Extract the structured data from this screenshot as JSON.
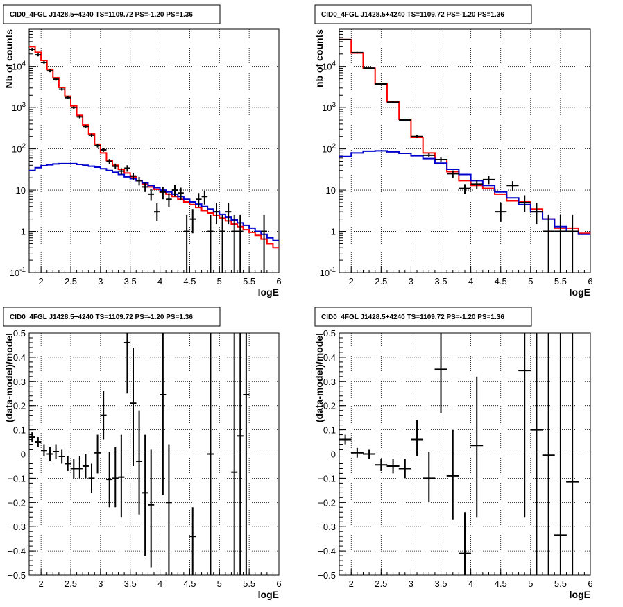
{
  "chart_data": [
    {
      "type": "step-histogram",
      "title": "CID0_4FGL J1428.5+4240 TS=1109.72 PS=-1.20 PS=1.36",
      "xlabel": "logE",
      "ylabel": "Nb of counts",
      "xlim": [
        1.8,
        6.0
      ],
      "ylim": [
        0.1,
        80000
      ],
      "log_y": true,
      "grid": true,
      "x_ticks": [
        "2",
        "2.5",
        "3",
        "3.5",
        "4",
        "4.5",
        "5",
        "5.5",
        "6"
      ],
      "y_ticks": [
        "10^-1",
        "1",
        "10",
        "10^2",
        "10^3",
        "10^4"
      ],
      "series": [
        {
          "color": "#ff0000",
          "style": "step",
          "edges": [
            1.8,
            1.9,
            2.0,
            2.1,
            2.2,
            2.3,
            2.4,
            2.5,
            2.6,
            2.7,
            2.8,
            2.9,
            3.0,
            3.1,
            3.2,
            3.3,
            3.4,
            3.5,
            3.6,
            3.7,
            3.8,
            3.9,
            4.0,
            4.1,
            4.2,
            4.3,
            4.4,
            4.5,
            4.6,
            4.7,
            4.8,
            4.9,
            5.0,
            5.1,
            5.2,
            5.3,
            5.4,
            5.5,
            5.6,
            5.7,
            5.8,
            5.9,
            6.0
          ],
          "values": [
            30000,
            22000,
            14000,
            8500,
            5300,
            3100,
            1900,
            1100,
            650,
            380,
            230,
            130,
            80,
            52,
            40,
            32,
            26,
            21,
            17,
            14,
            12,
            10.5,
            9,
            8,
            7,
            6,
            5.2,
            4.5,
            3.8,
            3.2,
            2.8,
            2.4,
            2.1,
            1.8,
            1.5,
            1.3,
            1.1,
            0.95,
            0.8,
            0.65,
            0.5,
            0.4
          ]
        },
        {
          "color": "#0000cc",
          "style": "step",
          "edges": [
            1.8,
            1.9,
            2.0,
            2.1,
            2.2,
            2.3,
            2.4,
            2.5,
            2.6,
            2.7,
            2.8,
            2.9,
            3.0,
            3.1,
            3.2,
            3.3,
            3.4,
            3.5,
            3.6,
            3.7,
            3.8,
            3.9,
            4.0,
            4.1,
            4.2,
            4.3,
            4.4,
            4.5,
            4.6,
            4.7,
            4.8,
            4.9,
            5.0,
            5.1,
            5.2,
            5.3,
            5.4,
            5.5,
            5.6,
            5.7,
            5.8,
            5.9,
            6.0
          ],
          "values": [
            30,
            35,
            39,
            41,
            43,
            44,
            44,
            44,
            42,
            40,
            38,
            36,
            33,
            30,
            27,
            24,
            21,
            19,
            17,
            15,
            13,
            11.5,
            10,
            9,
            8,
            7,
            6,
            5.2,
            4.6,
            4,
            3.5,
            3,
            2.6,
            2.2,
            1.9,
            1.6,
            1.4,
            1.2,
            1,
            0.85,
            0.7,
            0.6
          ]
        },
        {
          "color": "#000000",
          "style": "points",
          "points": [
            {
              "x": 1.85,
              "y": 26000,
              "ylo": 24000,
              "yhi": 28000
            },
            {
              "x": 1.95,
              "y": 19000,
              "ylo": 17500,
              "yhi": 20500
            },
            {
              "x": 2.05,
              "y": 12500,
              "ylo": 11500,
              "yhi": 13500
            },
            {
              "x": 2.15,
              "y": 7800,
              "ylo": 7200,
              "yhi": 8400
            },
            {
              "x": 2.25,
              "y": 4900,
              "ylo": 4500,
              "yhi": 5300
            },
            {
              "x": 2.35,
              "y": 2800,
              "ylo": 2600,
              "yhi": 3000
            },
            {
              "x": 2.45,
              "y": 1750,
              "ylo": 1620,
              "yhi": 1880
            },
            {
              "x": 2.55,
              "y": 1000,
              "ylo": 930,
              "yhi": 1070
            },
            {
              "x": 2.65,
              "y": 600,
              "ylo": 550,
              "yhi": 650
            },
            {
              "x": 2.75,
              "y": 350,
              "ylo": 320,
              "yhi": 380
            },
            {
              "x": 2.85,
              "y": 215,
              "ylo": 195,
              "yhi": 235
            },
            {
              "x": 2.95,
              "y": 120,
              "ylo": 108,
              "yhi": 132
            },
            {
              "x": 3.05,
              "y": 95,
              "ylo": 85,
              "yhi": 105
            },
            {
              "x": 3.15,
              "y": 50,
              "ylo": 43,
              "yhi": 57
            },
            {
              "x": 3.25,
              "y": 38,
              "ylo": 32,
              "yhi": 44
            },
            {
              "x": 3.35,
              "y": 29,
              "ylo": 24,
              "yhi": 34
            },
            {
              "x": 3.45,
              "y": 34,
              "ylo": 28,
              "yhi": 40
            },
            {
              "x": 3.55,
              "y": 22,
              "ylo": 17.5,
              "yhi": 26.5
            },
            {
              "x": 3.65,
              "y": 17,
              "ylo": 13,
              "yhi": 21
            },
            {
              "x": 3.75,
              "y": 12,
              "ylo": 9,
              "yhi": 15
            },
            {
              "x": 3.85,
              "y": 8,
              "ylo": 5.5,
              "yhi": 10.5
            },
            {
              "x": 3.95,
              "y": 3,
              "ylo": 1.8,
              "yhi": 5
            },
            {
              "x": 4.05,
              "y": 9,
              "ylo": 6,
              "yhi": 12
            },
            {
              "x": 4.15,
              "y": 6,
              "ylo": 3.8,
              "yhi": 8.5
            },
            {
              "x": 4.25,
              "y": 10,
              "ylo": 7,
              "yhi": 13.5
            },
            {
              "x": 4.35,
              "y": 8.5,
              "ylo": 5.8,
              "yhi": 11.5
            },
            {
              "x": 4.45,
              "y": 1,
              "ylo": 0.1,
              "yhi": 2.5
            },
            {
              "x": 4.55,
              "y": 2,
              "ylo": 0.9,
              "yhi": 3.5
            },
            {
              "x": 4.65,
              "y": 6,
              "ylo": 3.8,
              "yhi": 8.5
            },
            {
              "x": 4.75,
              "y": 7,
              "ylo": 4.5,
              "yhi": 9.5
            },
            {
              "x": 4.85,
              "y": 1,
              "ylo": 0.1,
              "yhi": 2.5
            },
            {
              "x": 4.95,
              "y": 3,
              "ylo": 1.5,
              "yhi": 5
            },
            {
              "x": 5.05,
              "y": 1,
              "ylo": 0.1,
              "yhi": 2.5
            },
            {
              "x": 5.15,
              "y": 3,
              "ylo": 1.5,
              "yhi": 5
            },
            {
              "x": 5.25,
              "y": 1,
              "ylo": 0.1,
              "yhi": 2.5
            },
            {
              "x": 5.35,
              "y": 1,
              "ylo": 0.1,
              "yhi": 2.5
            },
            {
              "x": 5.75,
              "y": 1,
              "ylo": 0.1,
              "yhi": 2.5
            }
          ]
        }
      ]
    },
    {
      "type": "step-histogram",
      "title": "CID0_4FGL J1428.5+4240 TS=1109.72 PS=-1.20 PS=1.36",
      "xlabel": "logE",
      "ylabel": "nb of counts",
      "xlim": [
        1.8,
        6.0
      ],
      "ylim": [
        0.1,
        80000
      ],
      "log_y": true,
      "grid": true,
      "x_ticks": [
        "2",
        "2.5",
        "3",
        "3.5",
        "4",
        "4.5",
        "5",
        "5.5",
        "6"
      ],
      "y_ticks": [
        "10^-1",
        "1",
        "10",
        "10^2",
        "10^3",
        "10^4"
      ],
      "series": [
        {
          "color": "#ff0000",
          "style": "step",
          "edges": [
            1.8,
            2.0,
            2.2,
            2.4,
            2.6,
            2.8,
            3.0,
            3.2,
            3.4,
            3.6,
            3.8,
            4.0,
            4.2,
            4.4,
            4.6,
            4.8,
            5.0,
            5.2,
            5.4,
            5.6,
            5.8,
            6.0
          ],
          "values": [
            45000,
            21000,
            9000,
            3800,
            1400,
            520,
            190,
            80,
            55,
            28,
            17,
            13,
            11,
            8,
            5.5,
            5.2,
            3.5,
            2,
            1.2,
            1.2,
            0.9
          ]
        },
        {
          "color": "#0000cc",
          "style": "step",
          "edges": [
            1.8,
            2.0,
            2.2,
            2.4,
            2.6,
            2.8,
            3.0,
            3.2,
            3.4,
            3.6,
            3.8,
            4.0,
            4.2,
            4.4,
            4.6,
            4.8,
            5.0,
            5.2,
            5.4,
            5.6,
            5.8,
            6.0
          ],
          "values": [
            65,
            80,
            88,
            90,
            85,
            78,
            68,
            58,
            45,
            32,
            24,
            17,
            13,
            9,
            6.5,
            4.5,
            3,
            2,
            1.3,
            1,
            0.85
          ]
        },
        {
          "color": "#000000",
          "style": "points",
          "points": [
            {
              "x": 1.9,
              "y": 45000,
              "ylo": 43500,
              "yhi": 46500
            },
            {
              "x": 2.1,
              "y": 21500,
              "ylo": 20500,
              "yhi": 22500
            },
            {
              "x": 2.3,
              "y": 9100,
              "ylo": 8800,
              "yhi": 9400
            },
            {
              "x": 2.5,
              "y": 3750,
              "ylo": 3600,
              "yhi": 3900
            },
            {
              "x": 2.7,
              "y": 1360,
              "ylo": 1290,
              "yhi": 1430
            },
            {
              "x": 2.9,
              "y": 500,
              "ylo": 470,
              "yhi": 530
            },
            {
              "x": 3.1,
              "y": 200,
              "ylo": 185,
              "yhi": 215
            },
            {
              "x": 3.3,
              "y": 70,
              "ylo": 62,
              "yhi": 78
            },
            {
              "x": 3.5,
              "y": 55,
              "ylo": 48,
              "yhi": 62
            },
            {
              "x": 3.7,
              "y": 25,
              "ylo": 20,
              "yhi": 30
            },
            {
              "x": 3.9,
              "y": 11,
              "ylo": 8,
              "yhi": 14
            },
            {
              "x": 4.1,
              "y": 14,
              "ylo": 10.5,
              "yhi": 17.5
            },
            {
              "x": 4.3,
              "y": 18,
              "ylo": 14,
              "yhi": 22
            },
            {
              "x": 4.5,
              "y": 3,
              "ylo": 1.7,
              "yhi": 5
            },
            {
              "x": 4.7,
              "y": 13,
              "ylo": 9.5,
              "yhi": 16.5
            },
            {
              "x": 4.9,
              "y": 5,
              "ylo": 3,
              "yhi": 7.5
            },
            {
              "x": 5.1,
              "y": 3,
              "ylo": 1.5,
              "yhi": 5
            },
            {
              "x": 5.3,
              "y": 1,
              "ylo": 0.1,
              "yhi": 2.5
            },
            {
              "x": 5.5,
              "y": 1,
              "ylo": 0.1,
              "yhi": 2.5
            },
            {
              "x": 5.7,
              "y": 1,
              "ylo": 0.1,
              "yhi": 2.5
            }
          ]
        }
      ]
    },
    {
      "type": "scatter",
      "title": "CID0_4FGL J1428.5+4240 TS=1109.72 PS=-1.20 PS=1.36",
      "xlabel": "logE",
      "ylabel": "(data-model)/model",
      "xlim": [
        1.8,
        6.0
      ],
      "ylim": [
        -0.5,
        0.5
      ],
      "grid": true,
      "x_ticks": [
        "2",
        "2.5",
        "3",
        "3.5",
        "4",
        "4.5",
        "5",
        "5.5",
        "6"
      ],
      "y_ticks": [
        "−0.5",
        "−0.4",
        "−0.3",
        "−0.2",
        "−0.1",
        "0",
        "0.1",
        "0.2",
        "0.3",
        "0.4",
        "0.5"
      ],
      "points": [
        {
          "x": 1.85,
          "y": 0.07,
          "ylo": 0.05,
          "yhi": 0.09
        },
        {
          "x": 1.95,
          "y": 0.05,
          "ylo": 0.03,
          "yhi": 0.07
        },
        {
          "x": 2.05,
          "y": 0.015,
          "ylo": -0.01,
          "yhi": 0.04
        },
        {
          "x": 2.15,
          "y": 0.0,
          "ylo": -0.03,
          "yhi": 0.03
        },
        {
          "x": 2.25,
          "y": 0.01,
          "ylo": -0.02,
          "yhi": 0.04
        },
        {
          "x": 2.35,
          "y": -0.01,
          "ylo": -0.04,
          "yhi": 0.02
        },
        {
          "x": 2.45,
          "y": -0.04,
          "ylo": -0.07,
          "yhi": -0.01
        },
        {
          "x": 2.55,
          "y": -0.06,
          "ylo": -0.1,
          "yhi": -0.02
        },
        {
          "x": 2.65,
          "y": -0.06,
          "ylo": -0.1,
          "yhi": -0.01
        },
        {
          "x": 2.75,
          "y": -0.05,
          "ylo": -0.1,
          "yhi": 0.0
        },
        {
          "x": 2.85,
          "y": -0.1,
          "ylo": -0.16,
          "yhi": -0.04
        },
        {
          "x": 2.95,
          "y": 0.005,
          "ylo": -0.08,
          "yhi": 0.08
        },
        {
          "x": 3.05,
          "y": 0.16,
          "ylo": 0.06,
          "yhi": 0.26
        },
        {
          "x": 3.15,
          "y": -0.105,
          "ylo": -0.22,
          "yhi": 0.01
        },
        {
          "x": 3.25,
          "y": -0.1,
          "ylo": -0.22,
          "yhi": 0.03
        },
        {
          "x": 3.35,
          "y": -0.095,
          "ylo": -0.26,
          "yhi": 0.08
        },
        {
          "x": 3.45,
          "y": 0.46,
          "ylo": 0.25,
          "yhi": 0.5
        },
        {
          "x": 3.55,
          "y": 0.21,
          "ylo": -0.05,
          "yhi": 0.44
        },
        {
          "x": 3.65,
          "y": -0.03,
          "ylo": -0.25,
          "yhi": 0.18
        },
        {
          "x": 3.75,
          "y": -0.16,
          "ylo": -0.42,
          "yhi": 0.08
        },
        {
          "x": 3.85,
          "y": -0.21,
          "ylo": -0.47,
          "yhi": 0.02
        },
        {
          "x": 4.05,
          "y": 0.245,
          "ylo": -0.17,
          "yhi": 0.5
        },
        {
          "x": 4.15,
          "y": -0.2,
          "ylo": -0.5,
          "yhi": 0.04
        },
        {
          "x": 4.55,
          "y": -0.34,
          "ylo": -0.5,
          "yhi": -0.22
        },
        {
          "x": 4.85,
          "y": 0.0,
          "ylo": -0.5,
          "yhi": 0.5
        },
        {
          "x": 5.25,
          "y": -0.075,
          "ylo": -0.5,
          "yhi": 0.5
        },
        {
          "x": 5.35,
          "y": 0.075,
          "ylo": -0.5,
          "yhi": 0.5
        },
        {
          "x": 5.45,
          "y": 0.245,
          "ylo": -0.5,
          "yhi": 0.5
        }
      ]
    },
    {
      "type": "scatter",
      "title": "CID0_4FGL J1428.5+4240 TS=1109.72 PS=-1.20 PS=1.36",
      "xlabel": "logE",
      "ylabel": "(data-model)/model",
      "xlim": [
        1.8,
        6.0
      ],
      "ylim": [
        -0.5,
        0.5
      ],
      "grid": true,
      "x_ticks": [
        "2",
        "2.5",
        "3",
        "3.5",
        "4",
        "4.5",
        "5",
        "5.5",
        "6"
      ],
      "y_ticks": [
        "−0.5",
        "−0.4",
        "−0.3",
        "−0.2",
        "−0.1",
        "0",
        "0.1",
        "0.2",
        "0.3",
        "0.4",
        "0.5"
      ],
      "points": [
        {
          "x": 1.9,
          "y": 0.06,
          "ylo": 0.04,
          "yhi": 0.08
        },
        {
          "x": 2.1,
          "y": 0.005,
          "ylo": -0.015,
          "yhi": 0.025
        },
        {
          "x": 2.3,
          "y": 0.0,
          "ylo": -0.02,
          "yhi": 0.02
        },
        {
          "x": 2.5,
          "y": -0.045,
          "ylo": -0.07,
          "yhi": -0.02
        },
        {
          "x": 2.7,
          "y": -0.05,
          "ylo": -0.08,
          "yhi": -0.02
        },
        {
          "x": 2.9,
          "y": -0.06,
          "ylo": -0.1,
          "yhi": -0.02
        },
        {
          "x": 3.1,
          "y": 0.06,
          "ylo": -0.01,
          "yhi": 0.14
        },
        {
          "x": 3.3,
          "y": -0.1,
          "ylo": -0.2,
          "yhi": 0.01
        },
        {
          "x": 3.5,
          "y": 0.35,
          "ylo": 0.17,
          "yhi": 0.5
        },
        {
          "x": 3.7,
          "y": -0.09,
          "ylo": -0.27,
          "yhi": 0.1
        },
        {
          "x": 3.9,
          "y": -0.41,
          "ylo": -0.5,
          "yhi": -0.24
        },
        {
          "x": 4.1,
          "y": 0.035,
          "ylo": -0.26,
          "yhi": 0.32
        },
        {
          "x": 4.9,
          "y": 0.345,
          "ylo": -0.26,
          "yhi": 0.5
        },
        {
          "x": 5.1,
          "y": 0.1,
          "ylo": -0.5,
          "yhi": 0.5
        },
        {
          "x": 5.3,
          "y": -0.005,
          "ylo": -0.5,
          "yhi": 0.5
        },
        {
          "x": 5.5,
          "y": -0.335,
          "ylo": -0.5,
          "yhi": 0.5
        },
        {
          "x": 5.7,
          "y": -0.115,
          "ylo": -0.5,
          "yhi": 0.5
        }
      ]
    }
  ]
}
